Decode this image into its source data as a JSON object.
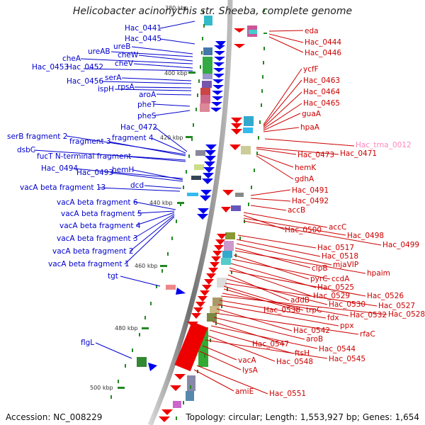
{
  "title": "Helicobacter acinonychis str. Sheeba, complete genome",
  "accession": "Accession: NC_008229",
  "topology": "Topology: circular; Length: 1,553,927 bp; Genes: 1,654",
  "colors": {
    "left_labels": "#0000cc",
    "right_labels": "#cc0000",
    "trna_label": "#ff88bb",
    "backbone": "#888888",
    "ticks": "#228822"
  },
  "kbp_markers": [
    "380 kbp",
    "400 kbp",
    "420 kbp",
    "440 kbp",
    "460 kbp",
    "480 kbp",
    "500 kbp"
  ],
  "left_genes": [
    "Hac_0441",
    "Hac_0445",
    "ureB",
    "ureAB",
    "cheW",
    "cheA",
    "cheV",
    "Hac_0453",
    "Hac_0452",
    "serA",
    "Hac_0456",
    "rpsA",
    "ispH",
    "aroA",
    "pheT",
    "pheS",
    "Hac_0472",
    "fragment 4",
    "serB fragment 2",
    "fragment 3",
    "dsbC",
    "fucT N-terminal fragment",
    "Hac_0494",
    "hemH",
    "Hac_0493",
    "dcd",
    "vacA beta fragment 13",
    "vacA beta fragment 6",
    "vacA beta fragment 5",
    "vacA beta fragment 4",
    "vacA beta fragment 3",
    "vacA beta fragment 2",
    "vacA beta fragment 1",
    "tgt",
    "flgL"
  ],
  "right_genes": [
    "eda",
    "Hac_0444",
    "Hac_0446",
    "ycfF",
    "Hac_0463",
    "Hac_0464",
    "Hac_0465",
    "guaA",
    "hpaA",
    "Hac_trna_0012",
    "Hac_0473",
    "Hac_0471",
    "hemK",
    "gdhA",
    "Hac_0491",
    "Hac_0492",
    "accB",
    "accC",
    "Hac_0500",
    "Hac_0498",
    "Hac_0499",
    "Hac_0517",
    "Hac_0518",
    "mjaVIP",
    "clpB",
    "hpaim",
    "pyrC",
    "ccdA",
    "Hac_0525",
    "Hac_0529",
    "Hac_0526",
    "addB",
    "Hac_0530",
    "Hac_0527",
    "trpC",
    "Hac_0538",
    "Hac_0532",
    "Hac_0528",
    "fdx",
    "ppx",
    "Hac_0542",
    "rfaC",
    "aroB",
    "Hac_0547",
    "Hac_0544",
    "ftsH",
    "vacA",
    "Hac_0548",
    "Hac_0545",
    "lysA",
    "amiE",
    "Hac_0551"
  ]
}
